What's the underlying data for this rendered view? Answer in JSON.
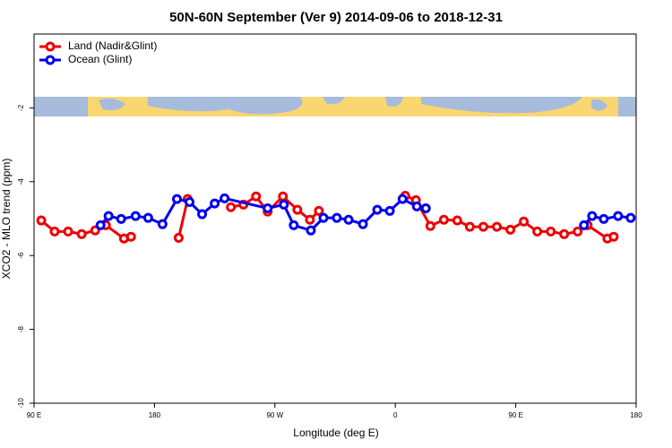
{
  "chart_data": {
    "type": "line",
    "title": "50N-60N September (Ver 9)   2014-09-06 to 2018-12-31",
    "xlabel": "Longitude (deg E)",
    "ylabel": "XCO2 - MLO trend (ppm)",
    "xlim": [
      90,
      540
    ],
    "ylim": [
      -10,
      0
    ],
    "xticks": [
      {
        "value": 90,
        "label": "90 E"
      },
      180,
      {
        "value": 270,
        "label": "90 W"
      },
      {
        "value": 360,
        "label": "0"
      },
      {
        "value": 450,
        "label": "90 E"
      },
      {
        "value": 540,
        "label": "180"
      }
    ],
    "yticks": [
      -10,
      -8,
      -6,
      -4,
      -2
    ],
    "legend": "top-left",
    "series": [
      {
        "name": "Land (Nadir&Glint)",
        "color": "#ee0000",
        "x": [
          95.4,
          105.4,
          115.5,
          125.6,
          135.7,
          143.7,
          157.2,
          162.5,
          180,
          198.1,
          204.8,
          220,
          237.1,
          246.5,
          255.9,
          264.6,
          276.0,
          286.8,
          296.2,
          302.9,
          335,
          367.4,
          375.4,
          386.2,
          396.3,
          406.3,
          415.7,
          425.8,
          435.9,
          446.0,
          456.0,
          466.1,
          476.2,
          486.2,
          496.3,
          503.7,
          518.5,
          523.2
        ],
        "values": [
          -5.05,
          -5.35,
          -5.35,
          -5.42,
          -5.32,
          -5.18,
          -5.54,
          -5.49,
          null,
          -5.52,
          -4.47,
          null,
          -4.69,
          -4.62,
          -4.4,
          -4.81,
          -4.4,
          -4.76,
          -5.03,
          -4.79,
          null,
          -4.38,
          -4.5,
          -5.2,
          -5.03,
          -5.05,
          -5.22,
          -5.22,
          -5.22,
          -5.3,
          -5.08,
          -5.35,
          -5.35,
          -5.42,
          -5.35,
          -5.18,
          -5.54,
          -5.49
        ]
      },
      {
        "name": "Ocean (Glint)",
        "color": "#0000ee",
        "x": [
          139.7,
          145.7,
          155.1,
          165.9,
          175.3,
          186.0,
          196.8,
          206.2,
          215.6,
          225.0,
          232.4,
          264.6,
          276.7,
          284.1,
          296.9,
          306.3,
          316.3,
          325.1,
          335.8,
          346.5,
          355.9,
          365.4,
          376.1,
          382.8,
          450,
          501.0,
          507.1,
          515.8,
          526.5,
          535.9
        ],
        "values": [
          -5.18,
          -4.93,
          -5.01,
          -4.93,
          -4.98,
          -5.15,
          -4.47,
          -4.55,
          -4.88,
          -4.59,
          -4.45,
          -4.72,
          -4.62,
          -5.18,
          -5.32,
          -4.98,
          -4.98,
          -5.03,
          -5.15,
          -4.76,
          -4.79,
          -4.47,
          -4.67,
          -4.72,
          null,
          -5.18,
          -4.93,
          -5.01,
          -4.93,
          -4.98
        ]
      }
    ]
  }
}
